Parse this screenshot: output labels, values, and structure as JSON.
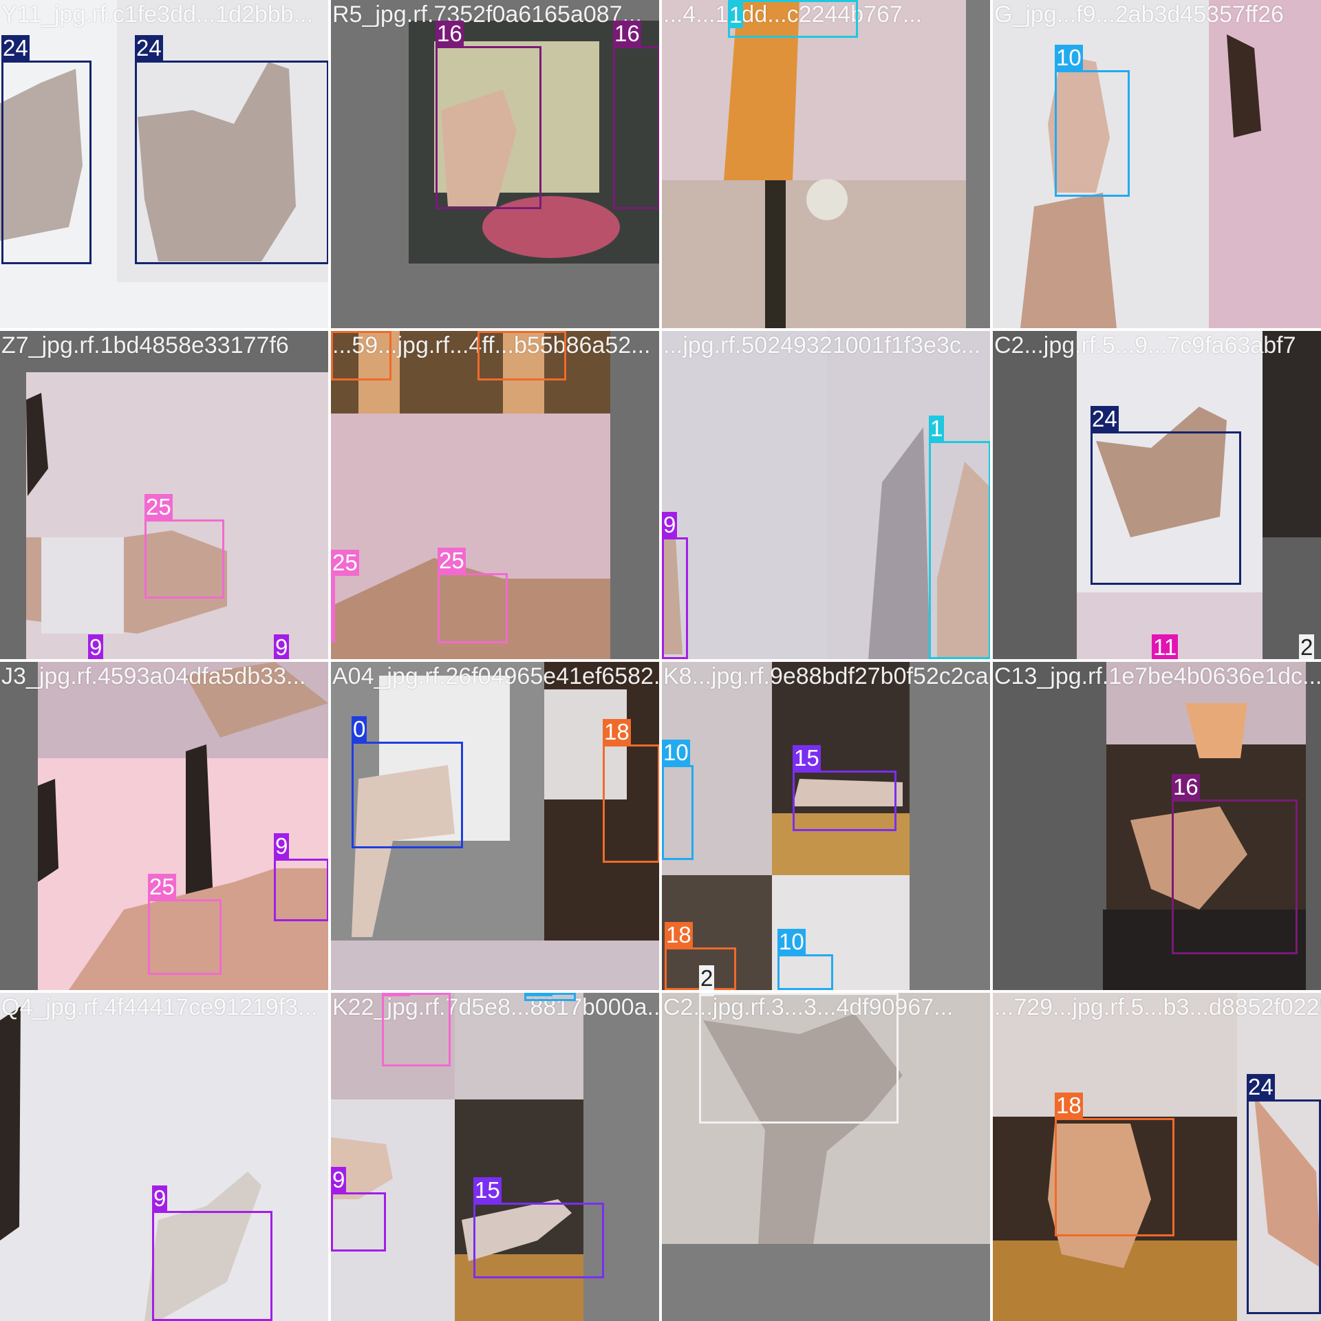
{
  "colors": {
    "0": "#1f3ee0",
    "1": "#1ec8e0",
    "2": "#f2f2f2",
    "9": "#a21ee6",
    "10": "#22aaf0",
    "11": "#e314b4",
    "15": "#7a2ef0",
    "16": "#7a1a78",
    "18": "#f06a2a",
    "24": "#15236e",
    "25": "#f26ad0"
  },
  "tiles": [
    {
      "title": "Y11_jpg.rf.c1fe3dd...1d2bbb...",
      "boxes": [
        {
          "cls": "24"
        },
        {
          "cls": "24"
        }
      ]
    },
    {
      "title": "R5_jpg.rf.7352f0a6165a087...",
      "boxes": [
        {
          "cls": "16"
        },
        {
          "cls": "16"
        }
      ]
    },
    {
      "title": "...4...1bdd...c2244b767...",
      "boxes": [
        {
          "cls": "1"
        }
      ]
    },
    {
      "title": "G_jpg...f9...2ab3d45357ff26",
      "boxes": [
        {
          "cls": "10"
        }
      ]
    },
    {
      "title": "Z7_jpg.rf.1bd4858e33177f6",
      "boxes": [
        {
          "cls": "25"
        },
        {
          "cls": "9"
        },
        {
          "cls": "9"
        }
      ]
    },
    {
      "title": "...59...jpg.rf...4ff...b55b86a52...",
      "boxes": [
        {
          "cls": "18"
        },
        {
          "cls": "18"
        },
        {
          "cls": "25"
        },
        {
          "cls": "25"
        }
      ]
    },
    {
      "title": "...jpg.rf.50249321001f1f3e3c...",
      "boxes": [
        {
          "cls": "1"
        },
        {
          "cls": "9"
        }
      ]
    },
    {
      "title": "C2...jpg.rf.5...9...7c9fa63abf7",
      "boxes": [
        {
          "cls": "24"
        },
        {
          "cls": "11"
        },
        {
          "cls": "2"
        }
      ]
    },
    {
      "title": "J3_jpg.rf.4593a04dfa5db33...",
      "boxes": [
        {
          "cls": "25"
        },
        {
          "cls": "9"
        }
      ]
    },
    {
      "title": "A04_jpg.rf.26f04965e41ef6582...",
      "boxes": [
        {
          "cls": "0"
        },
        {
          "cls": "18"
        }
      ]
    },
    {
      "title": "K8...jpg.rf.9e88bdf27b0f52c2ca1...",
      "boxes": [
        {
          "cls": "10"
        },
        {
          "cls": "15"
        },
        {
          "cls": "18"
        },
        {
          "cls": "10"
        },
        {
          "cls": "2"
        }
      ]
    },
    {
      "title": "C13_jpg.rf.1e7be4b0636e1dc...",
      "boxes": [
        {
          "cls": "16"
        }
      ]
    },
    {
      "title": "Q4_jpg.rf.4f44417ce91219f3...",
      "boxes": [
        {
          "cls": "9"
        }
      ]
    },
    {
      "title": "K22_jpg.rf.7d5e8...8817b000a...",
      "boxes": [
        {
          "cls": "25"
        },
        {
          "cls": "10"
        },
        {
          "cls": "9"
        },
        {
          "cls": "15"
        }
      ]
    },
    {
      "title": "C2...jpg.rf.3...3...4df90967...",
      "boxes": [
        {
          "cls": "2"
        }
      ]
    },
    {
      "title": "...729...jpg.rf.5...b3...d8852f0225",
      "boxes": [
        {
          "cls": "18"
        },
        {
          "cls": "24"
        }
      ]
    }
  ]
}
